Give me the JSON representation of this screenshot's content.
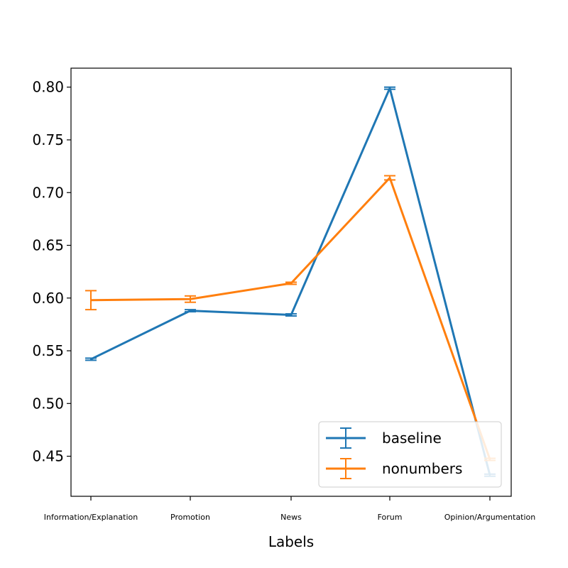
{
  "chart_data": {
    "type": "line",
    "categories": [
      "Information/Explanation",
      "Promotion",
      "News",
      "Forum",
      "Opinion/Argumentation"
    ],
    "xlabel": "Labels",
    "ylabel": "",
    "ylim": [
      0.412,
      0.818
    ],
    "yticks": [
      "0.45",
      "0.50",
      "0.55",
      "0.60",
      "0.65",
      "0.70",
      "0.75",
      "0.80"
    ],
    "grid": false,
    "legend_position": "lower-right",
    "series": [
      {
        "name": "baseline",
        "color": "#1f77b4",
        "values": [
          0.542,
          0.588,
          0.584,
          0.799,
          0.432
        ],
        "errors": [
          0.001,
          0.001,
          0.001,
          0.001,
          0.001
        ]
      },
      {
        "name": "nonumbers",
        "color": "#ff7f0e",
        "values": [
          0.598,
          0.599,
          0.614,
          0.714,
          0.447
        ],
        "errors": [
          0.009,
          0.003,
          0.001,
          0.002,
          0.001
        ]
      }
    ]
  }
}
